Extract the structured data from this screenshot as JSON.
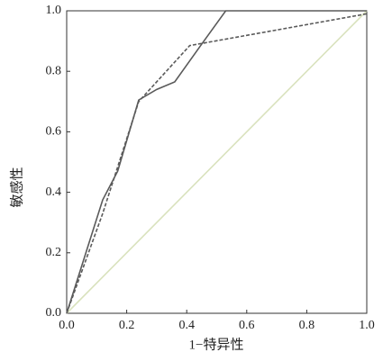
{
  "chart_data": {
    "type": "line",
    "x_label": "1−特异性",
    "y_label": "敏感性",
    "xlim": [
      0,
      1
    ],
    "ylim": [
      0,
      1
    ],
    "xticks": [
      {
        "value": 0,
        "label": "0.0"
      },
      {
        "value": 0.2,
        "label": "0.2"
      },
      {
        "value": 0.4,
        "label": "0.4"
      },
      {
        "value": 0.6,
        "label": "0.6"
      },
      {
        "value": 0.8,
        "label": "0.8"
      },
      {
        "value": 1,
        "label": "1.0"
      }
    ],
    "yticks": [
      {
        "value": 0,
        "label": "0.0"
      },
      {
        "value": 0.2,
        "label": "0.2"
      },
      {
        "value": 0.4,
        "label": "0.4"
      },
      {
        "value": 0.6,
        "label": "0.6"
      },
      {
        "value": 0.8,
        "label": "0.8"
      },
      {
        "value": 1,
        "label": "1.0"
      }
    ],
    "series": [
      {
        "color": "#d9e2bd",
        "dash": false,
        "x": [
          0,
          1
        ],
        "values": [
          0,
          1
        ]
      },
      {
        "color": "#5a5a5a",
        "dash": true,
        "x": [
          0,
          0.12,
          0.24,
          0.41,
          1
        ],
        "values": [
          0,
          0.33,
          0.7,
          0.885,
          0.99
        ]
      },
      {
        "color": "#5a5a5a",
        "dash": false,
        "x": [
          0,
          0.12,
          0.17,
          0.24,
          0.3,
          0.36,
          0.45,
          0.53,
          1
        ],
        "values": [
          0,
          0.375,
          0.47,
          0.705,
          0.74,
          0.765,
          0.89,
          1,
          1
        ]
      }
    ]
  }
}
